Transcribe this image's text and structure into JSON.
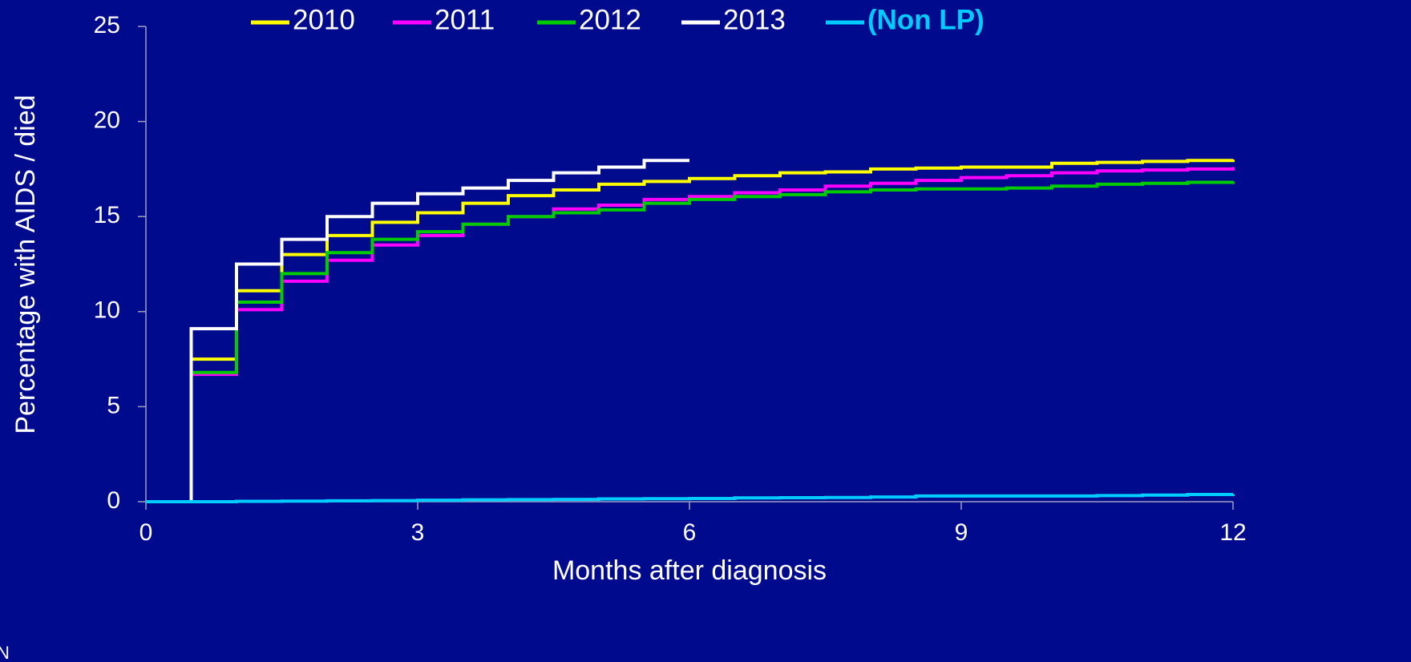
{
  "chart_data": {
    "type": "step",
    "x_label": "Months after diagnosis",
    "y_label": "Percentage with AIDS / died",
    "footnote": "N",
    "x": [
      0,
      0.5,
      1,
      1.5,
      2,
      2.5,
      3,
      3.5,
      4,
      4.5,
      5,
      5.5,
      6,
      6.5,
      7,
      7.5,
      8,
      8.5,
      9,
      9.5,
      10,
      10.5,
      11,
      11.5,
      12
    ],
    "xlim": [
      0,
      12
    ],
    "xticks": [
      0,
      3,
      6,
      9,
      12
    ],
    "ylim": [
      0,
      25
    ],
    "yticks": [
      0,
      5,
      10,
      15,
      20,
      25
    ],
    "series": [
      {
        "name": "2010",
        "color": "#ffff00",
        "values": [
          0,
          7.5,
          11.1,
          13.0,
          14.0,
          14.7,
          15.2,
          15.7,
          16.1,
          16.4,
          16.7,
          16.85,
          17.0,
          17.15,
          17.3,
          17.35,
          17.5,
          17.55,
          17.6,
          17.6,
          17.8,
          17.85,
          17.9,
          17.95,
          18.0
        ]
      },
      {
        "name": "2011",
        "color": "#ff00ff",
        "values": [
          0,
          6.7,
          10.1,
          11.6,
          12.7,
          13.5,
          14.0,
          14.6,
          15.0,
          15.4,
          15.6,
          15.9,
          16.05,
          16.25,
          16.4,
          16.6,
          16.75,
          16.9,
          17.05,
          17.15,
          17.3,
          17.4,
          17.45,
          17.5,
          17.6
        ]
      },
      {
        "name": "2012",
        "color": "#00cc00",
        "values": [
          0,
          6.8,
          10.5,
          12.0,
          13.1,
          13.8,
          14.2,
          14.6,
          15.0,
          15.2,
          15.35,
          15.7,
          15.9,
          16.05,
          16.15,
          16.3,
          16.4,
          16.45,
          16.45,
          16.5,
          16.6,
          16.7,
          16.75,
          16.8,
          16.85
        ]
      },
      {
        "name": "2013",
        "color": "#ffffff",
        "values": [
          0,
          9.1,
          12.5,
          13.8,
          15.0,
          15.7,
          16.2,
          16.5,
          16.9,
          17.3,
          17.6,
          17.95,
          17.95,
          null,
          null,
          null,
          null,
          null,
          null,
          null,
          null,
          null,
          null,
          null,
          null
        ]
      },
      {
        "name": "(Non LP)",
        "color": "#00ccff",
        "values": [
          0,
          0,
          0.02,
          0.03,
          0.05,
          0.06,
          0.08,
          0.1,
          0.11,
          0.12,
          0.15,
          0.16,
          0.17,
          0.2,
          0.21,
          0.22,
          0.25,
          0.3,
          0.3,
          0.3,
          0.3,
          0.32,
          0.35,
          0.38,
          0.4
        ]
      }
    ]
  }
}
